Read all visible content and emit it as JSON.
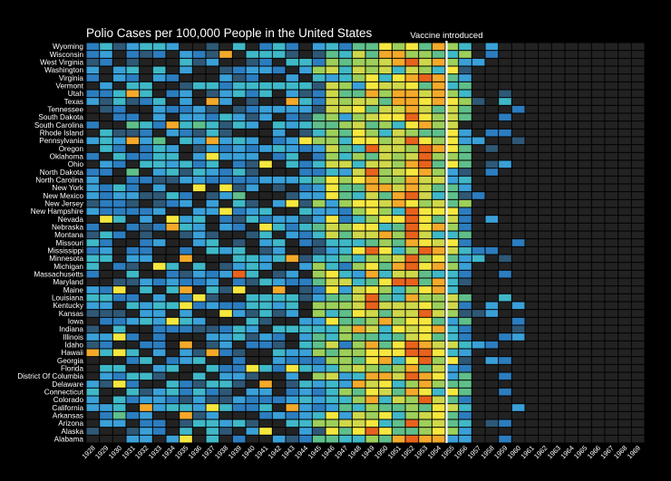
{
  "chart_data": {
    "type": "heatmap",
    "title": "Polio Cases per 100,000 People in the United States",
    "annotation": {
      "label": "Vaccine introduced",
      "year": "1955"
    },
    "years": [
      "1928",
      "1929",
      "1930",
      "1931",
      "1932",
      "1933",
      "1934",
      "1935",
      "1936",
      "1937",
      "1938",
      "1939",
      "1940",
      "1941",
      "1942",
      "1943",
      "1944",
      "1945",
      "1946",
      "1947",
      "1948",
      "1949",
      "1950",
      "1951",
      "1952",
      "1953",
      "1954",
      "1955",
      "1956",
      "1957",
      "1958",
      "1959",
      "1960",
      "1961",
      "1962",
      "1963",
      "1964",
      "1965",
      "1966",
      "1967",
      "1968",
      "1969"
    ],
    "states": [
      "Wyoming",
      "Wisconsin",
      "West Virginia",
      "Washington",
      "Virginia",
      "Vermont",
      "Utah",
      "Texas",
      "Tennessee",
      "South Dakota",
      "South Carolina",
      "Rhode Island",
      "Pennsylvania",
      "Oregon",
      "Oklahoma",
      "Ohio",
      "North Dakota",
      "North Carolina",
      "New York",
      "New Mexico",
      "New Jersey",
      "New Hampshire",
      "Nevada",
      "Nebraska",
      "Montana",
      "Missouri",
      "Mississippi",
      "Minnesota",
      "Michigan",
      "Massachusetts",
      "Maryland",
      "Maine",
      "Louisiana",
      "Kentucky",
      "Kansas",
      "Iowa",
      "Indiana",
      "Illinois",
      "Idaho",
      "Hawaii",
      "Georgia",
      "Florida",
      "District Of Columbia",
      "Delaware",
      "Connecticut",
      "Colorado",
      "California",
      "Arkansas",
      "Arizona",
      "Alaska",
      "Alabama"
    ],
    "color_scale": [
      "#222222",
      "#2a3f4f",
      "#2f5876",
      "#2c7dbf",
      "#3aa0d8",
      "#3fb8c8",
      "#5fbf8a",
      "#9dcf5a",
      "#cfd84a",
      "#f6e73f",
      "#f4a92a",
      "#e8621c"
    ],
    "scale_max": 80,
    "grid": false
  }
}
